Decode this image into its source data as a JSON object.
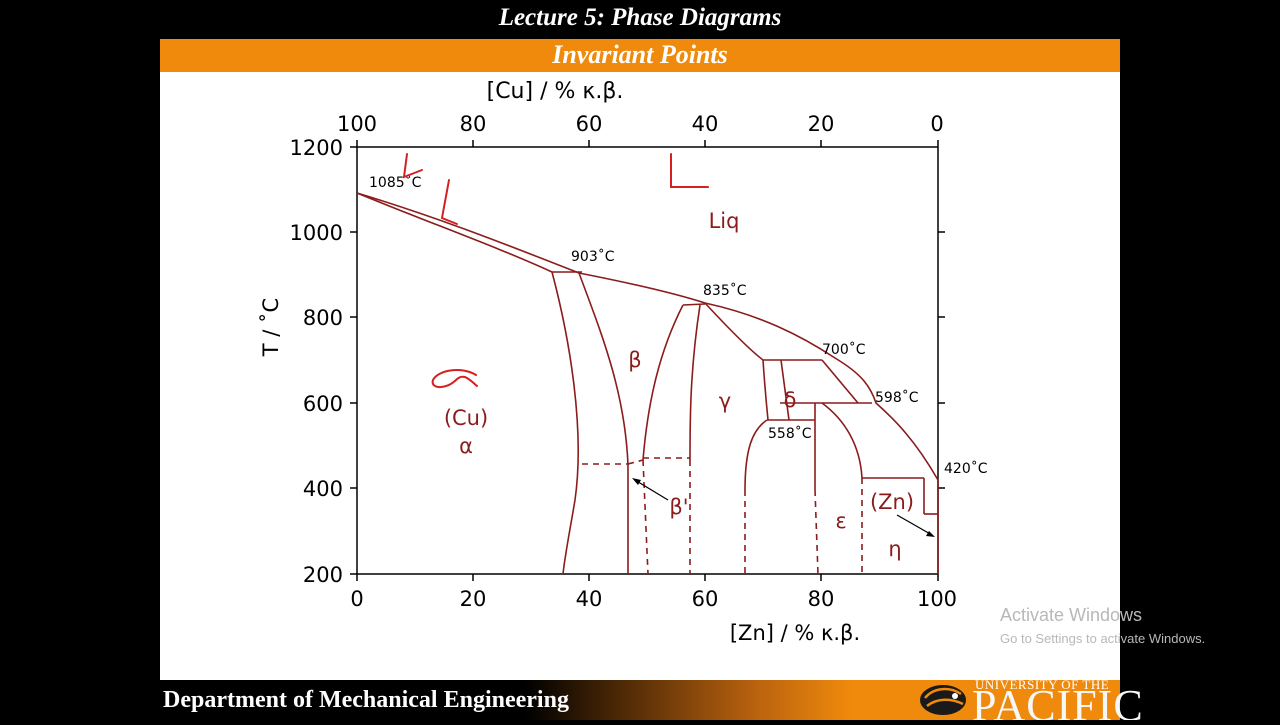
{
  "header": {
    "lecture_title": "Lecture 5: Phase Diagrams",
    "section_title": "Invariant Points"
  },
  "footer": {
    "department": "Department of Mechanical Engineering",
    "university_line": "UNIVERSITY OF THE",
    "university_name": "PACIFIC"
  },
  "overlay": {
    "activate_title": "Activate Windows",
    "activate_subtitle": "Go to Settings to activate Windows."
  },
  "diagram": {
    "top_axis_label": "[Cu] / % κ.β.",
    "top_ticks": [
      "100",
      "80",
      "60",
      "40",
      "20",
      "0"
    ],
    "bottom_axis_label": "[Zn] / % κ.β.",
    "bottom_ticks": [
      "0",
      "20",
      "40",
      "60",
      "80",
      "100"
    ],
    "y_axis_label": "T / ˚C",
    "y_ticks": [
      "1200",
      "1000",
      "800",
      "600",
      "400",
      "200"
    ],
    "temperatures": {
      "t1085": "1085˚C",
      "t903": "903˚C",
      "t835": "835˚C",
      "t700": "700˚C",
      "t598": "598˚C",
      "t558": "558˚C",
      "t420": "420˚C"
    },
    "phases": {
      "liq": "Liq",
      "cu": "(Cu)",
      "alpha": "α",
      "beta": "β",
      "beta_prime": "β'",
      "gamma": "γ",
      "delta": "δ",
      "epsilon": "ε",
      "zn": "(Zn)",
      "eta": "η"
    },
    "colors": {
      "phase_lines": "#8b1c1c",
      "annotation": "#d42020",
      "accent": "#f08a0c"
    }
  }
}
